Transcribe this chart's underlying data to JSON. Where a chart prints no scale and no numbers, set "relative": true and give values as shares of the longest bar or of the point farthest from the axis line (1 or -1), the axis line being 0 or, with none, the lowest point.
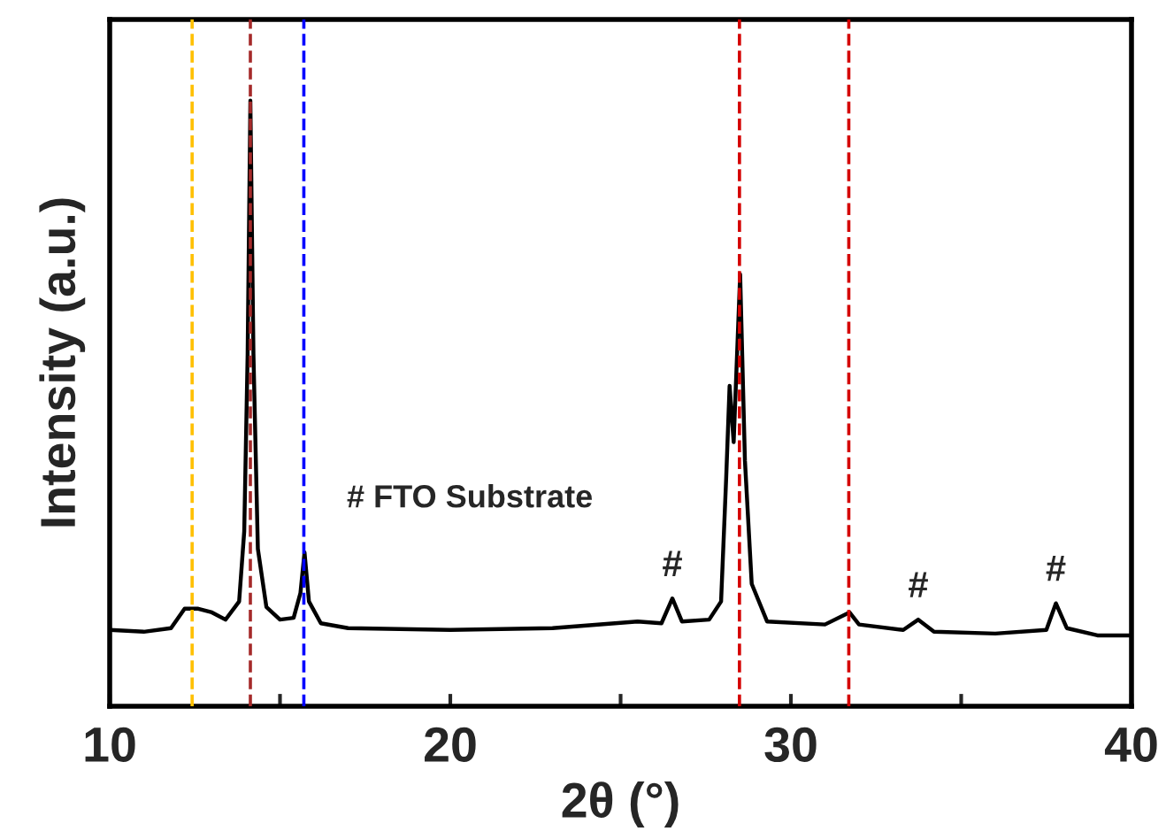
{
  "chart_data": {
    "type": "line",
    "xlabel": "2θ (°)",
    "ylabel": "Intensity (a.u.)",
    "relative": true,
    "tick_labels": "x",
    "xlim": [
      10,
      40
    ],
    "xticks": [
      10,
      {
        "value": 15,
        "label": null
      },
      20,
      {
        "value": 25,
        "label": null
      },
      30,
      {
        "value": 35,
        "label": null
      },
      40
    ],
    "series": [
      {
        "color": "#000000",
        "x": [
          10.0,
          11.0,
          11.8,
          12.2,
          12.6,
          13.0,
          13.4,
          13.8,
          13.95,
          14.05,
          14.13,
          14.22,
          14.35,
          14.6,
          15.0,
          15.4,
          15.6,
          15.72,
          15.85,
          16.2,
          17,
          20,
          23,
          25.5,
          26.2,
          26.52,
          26.8,
          27.6,
          27.95,
          28.1,
          28.2,
          28.32,
          28.51,
          28.65,
          28.85,
          29.3,
          31.0,
          31.72,
          32.0,
          33.3,
          33.74,
          34.2,
          36,
          37.5,
          37.78,
          38.1,
          39,
          40
        ],
        "values": [
          0.126,
          0.123,
          0.129,
          0.161,
          0.161,
          0.155,
          0.143,
          0.173,
          0.289,
          0.582,
          1.0,
          0.582,
          0.26,
          0.164,
          0.143,
          0.146,
          0.187,
          0.254,
          0.173,
          0.137,
          0.129,
          0.126,
          0.129,
          0.14,
          0.137,
          0.178,
          0.14,
          0.143,
          0.173,
          0.377,
          0.529,
          0.436,
          0.713,
          0.406,
          0.202,
          0.14,
          0.135,
          0.155,
          0.135,
          0.126,
          0.143,
          0.123,
          0.12,
          0.126,
          0.17,
          0.129,
          0.117,
          0.117
        ]
      }
    ],
    "ref_lines": [
      {
        "axis": "x",
        "value": 12.42,
        "color": "#ffc000",
        "line_style": "dashed"
      },
      {
        "axis": "x",
        "value": 14.13,
        "color": "#a52a2a",
        "line_style": "dashed"
      },
      {
        "axis": "x",
        "value": 15.7,
        "color": "#0000ff",
        "line_style": "dashed"
      },
      {
        "axis": "x",
        "value": 28.49,
        "color": "#d40000",
        "line_style": "dashed"
      },
      {
        "axis": "x",
        "value": 31.7,
        "color": "#d40000",
        "line_style": "dashed"
      }
    ],
    "annotations": [
      "# FTO Substrate",
      {
        "text": "#",
        "x": 26.52,
        "y": 0.178
      },
      {
        "text": "#",
        "x": 33.74,
        "y": 0.143
      },
      {
        "text": "#",
        "x": 37.78,
        "y": 0.17
      }
    ],
    "grid": false,
    "legend": false,
    "line_style": "solid",
    "marker": "none"
  }
}
